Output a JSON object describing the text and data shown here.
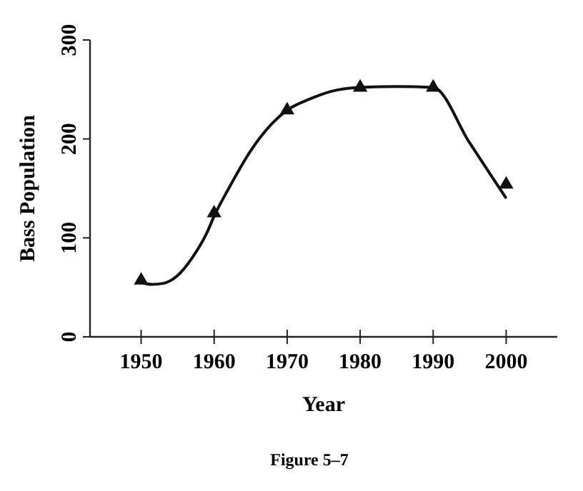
{
  "chart_data": {
    "type": "scatter",
    "xlabel": "Year",
    "ylabel": "Bass Population",
    "annotations": [
      "Figure 5–7"
    ],
    "xlim": [
      1943,
      2007
    ],
    "xticks": [
      1950,
      1960,
      1970,
      1980,
      1990,
      2000
    ],
    "ylim": [
      0,
      300
    ],
    "yticks": [
      0,
      100,
      200,
      300
    ],
    "grid": false,
    "series": [
      {
        "marker": "triangle",
        "color": "#111111",
        "x": [
          1950,
          1960,
          1970,
          1980,
          1990,
          2000
        ],
        "values": [
          57,
          125,
          229,
          252,
          252,
          154
        ]
      },
      {
        "type": "line",
        "marker": "none",
        "line_style": "solid",
        "color": "#111111",
        "x": [
          1950,
          1951.5,
          1953,
          1955,
          1957,
          1959,
          1960,
          1962,
          1965,
          1968,
          1970,
          1973,
          1976,
          1980,
          1985,
          1990,
          1995,
          2000
        ],
        "values": [
          55,
          53,
          54,
          62,
          80,
          105,
          122,
          150,
          188,
          216,
          229,
          240,
          248,
          252,
          253,
          252,
          196,
          140
        ]
      }
    ]
  }
}
